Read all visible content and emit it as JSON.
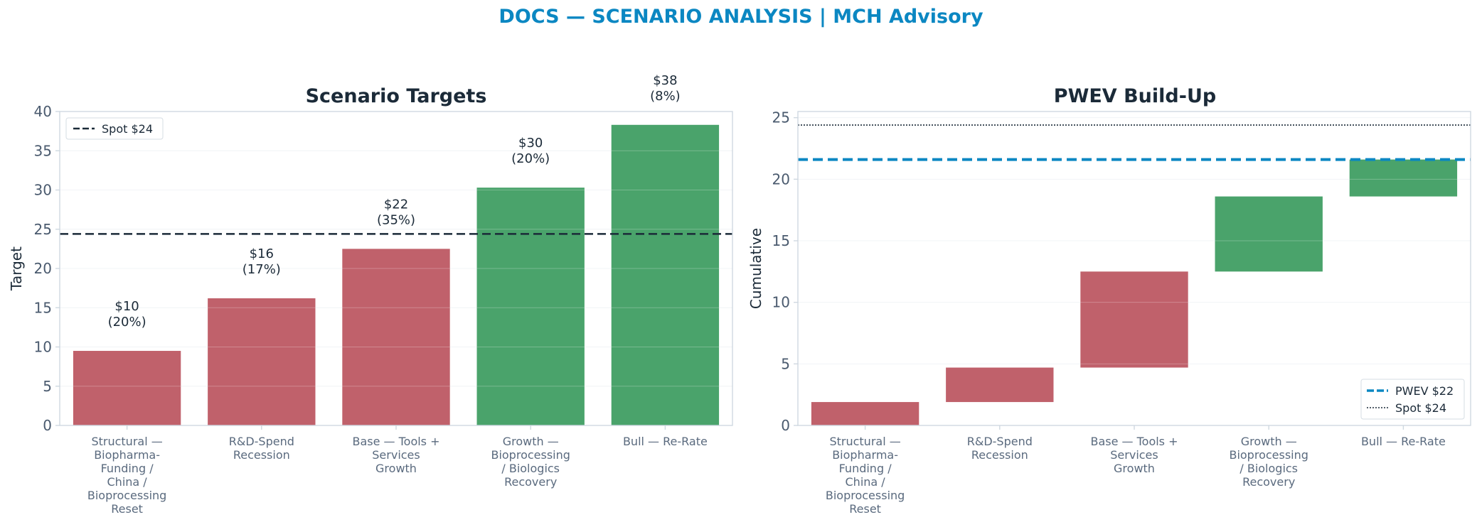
{
  "suptitle": "DOCS — SCENARIO ANALYSIS | MCH Advisory",
  "colors": {
    "bear": "#c0616b",
    "bull": "#4aa36b",
    "accent": "#0b87c2",
    "dark": "#1b2a38"
  },
  "chart_data": [
    {
      "type": "bar",
      "title": "Scenario Targets",
      "ylabel": "Target",
      "xlabel": "",
      "ylim": [
        0,
        40
      ],
      "yticks": [
        0,
        5,
        10,
        15,
        20,
        25,
        30,
        35,
        40
      ],
      "categories": [
        [
          "Structural —",
          "Biopharma-",
          "Funding /",
          "China /",
          "Bioprocessing",
          "Reset"
        ],
        [
          "R&D-Spend",
          "Recession"
        ],
        [
          "Base — Tools +",
          "Services",
          "Growth"
        ],
        [
          "Growth —",
          "Bioprocessing",
          "/ Biologics",
          "Recovery"
        ],
        [
          "Bull — Re-Rate"
        ]
      ],
      "values": [
        9.5,
        16.2,
        22.5,
        30.3,
        38.3
      ],
      "bar_colors": [
        "#c0616b",
        "#c0616b",
        "#c0616b",
        "#4aa36b",
        "#4aa36b"
      ],
      "labels": [
        [
          "$10",
          "(20%)"
        ],
        [
          "$16",
          "(17%)"
        ],
        [
          "$22",
          "(35%)"
        ],
        [
          "$30",
          "(20%)"
        ],
        [
          "$38",
          "(8%)"
        ]
      ],
      "reference_line": {
        "label": "Spot $24",
        "value": 24.4,
        "style": "dashed"
      },
      "legend": "upper-left",
      "grid": true
    },
    {
      "type": "waterfall",
      "title": "PWEV Build-Up",
      "ylabel": "Cumulative",
      "xlabel": "",
      "ylim": [
        0,
        25.5
      ],
      "yticks": [
        0,
        5,
        10,
        15,
        20,
        25
      ],
      "categories": [
        [
          "Structural —",
          "Biopharma-",
          "Funding /",
          "China /",
          "Bioprocessing",
          "Reset"
        ],
        [
          "R&D-Spend",
          "Recession"
        ],
        [
          "Base — Tools +",
          "Services",
          "Growth"
        ],
        [
          "Growth —",
          "Bioprocessing",
          "/ Biologics",
          "Recovery"
        ],
        [
          "Bull — Re-Rate"
        ]
      ],
      "segments": [
        [
          0,
          1.9
        ],
        [
          1.9,
          4.7
        ],
        [
          4.7,
          12.5
        ],
        [
          12.5,
          18.6
        ],
        [
          18.6,
          21.6
        ]
      ],
      "bar_colors": [
        "#c0616b",
        "#c0616b",
        "#c0616b",
        "#4aa36b",
        "#4aa36b"
      ],
      "reference_lines": [
        {
          "label": "PWEV $22",
          "value": 21.6,
          "style": "dashed",
          "color": "#0b87c2"
        },
        {
          "label": "Spot $24",
          "value": 24.4,
          "style": "dotted",
          "color": "#1b2a38"
        }
      ],
      "legend": "lower-right",
      "grid": true
    }
  ]
}
